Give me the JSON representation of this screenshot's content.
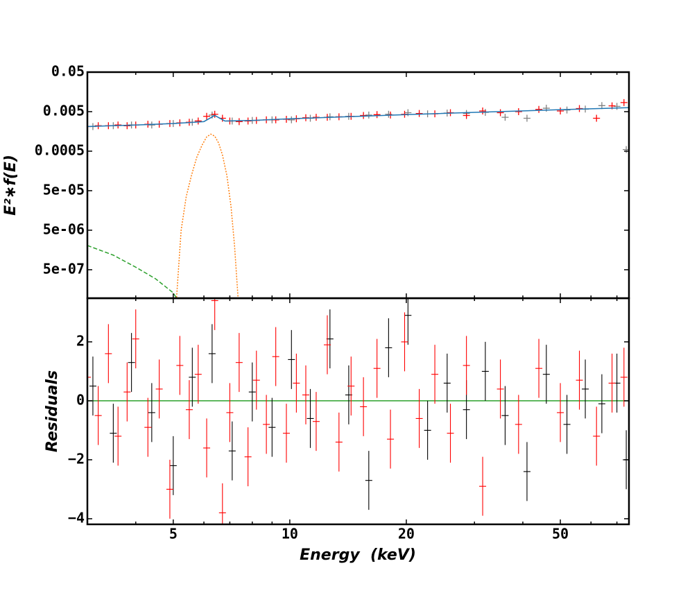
{
  "chart_data": [
    {
      "type": "line",
      "ylabel": "E²∗f(E)",
      "xscale": "log",
      "yscale": "log",
      "xlim": [
        3,
        75.2
      ],
      "ylim": [
        9.5e-08,
        0.05
      ],
      "yticks": [
        0.05,
        0.005,
        0.0005,
        {
          "value": 5e-05,
          "label": "5e-05"
        },
        {
          "value": 5e-06,
          "label": "5e-06"
        },
        {
          "value": 5e-07,
          "label": "5e-07"
        }
      ],
      "series": [
        {
          "style": "errorbar",
          "color": "#808080",
          "x": [
            3.1,
            3.5,
            3.9,
            4.4,
            5.0,
            5.6,
            6.3,
            7.1,
            8.0,
            9.0,
            10.1,
            11.3,
            12.7,
            14.2,
            16.0,
            18.0,
            20.2,
            22.7,
            25.5,
            28.6,
            32.0,
            36.0,
            41.0,
            46.0,
            52.0,
            58.0,
            64.0,
            70.0,
            74.0
          ],
          "values": [
            0.0021,
            0.0022,
            0.0023,
            0.0023,
            0.0025,
            0.0027,
            0.0041,
            0.0029,
            0.003,
            0.0031,
            0.0031,
            0.0034,
            0.0037,
            0.0038,
            0.0041,
            0.0043,
            0.0047,
            0.0044,
            0.0046,
            0.0045,
            0.0048,
            0.0036,
            0.0034,
            0.0061,
            0.0055,
            0.0058,
            0.0071,
            0.0068,
            0.00055
          ]
        },
        {
          "style": "errorbar",
          "color": "#ff0000",
          "x": [
            3.0,
            3.2,
            3.4,
            3.6,
            3.8,
            4.0,
            4.3,
            4.6,
            4.9,
            5.2,
            5.5,
            5.8,
            6.1,
            6.4,
            6.7,
            7.0,
            7.4,
            7.8,
            8.2,
            8.7,
            9.2,
            9.8,
            10.4,
            11.0,
            11.7,
            12.5,
            13.4,
            14.4,
            15.5,
            16.8,
            18.2,
            19.8,
            21.6,
            23.7,
            26.0,
            28.6,
            31.5,
            35.0,
            39.0,
            44.0,
            50.0,
            56.0,
            62.0,
            68.0,
            73.0
          ],
          "values": [
            0.0021,
            0.0022,
            0.0022,
            0.0023,
            0.0022,
            0.0023,
            0.0024,
            0.0024,
            0.0025,
            0.0026,
            0.0027,
            0.0029,
            0.0038,
            0.0043,
            0.0034,
            0.0029,
            0.0028,
            0.0029,
            0.003,
            0.0031,
            0.0031,
            0.0032,
            0.0033,
            0.0035,
            0.0036,
            0.0036,
            0.0037,
            0.0038,
            0.004,
            0.0042,
            0.0041,
            0.0043,
            0.0045,
            0.0044,
            0.0047,
            0.004,
            0.0052,
            0.0047,
            0.005,
            0.0057,
            0.0052,
            0.006,
            0.0034,
            0.007,
            0.0085
          ]
        },
        {
          "style": "solid",
          "color": "#1f77b4",
          "x": [
            3,
            4,
            5,
            6,
            6.4,
            6.8,
            8,
            10,
            15,
            20,
            30,
            50,
            75
          ],
          "values": [
            0.0021,
            0.0023,
            0.0025,
            0.0028,
            0.004,
            0.0029,
            0.003,
            0.0033,
            0.0038,
            0.0042,
            0.0048,
            0.0056,
            0.0063
          ]
        },
        {
          "style": "dotted",
          "color": "#ff7f0e",
          "x": [
            5.1,
            5.24,
            5.4,
            5.57,
            5.75,
            5.93,
            6.1,
            6.25,
            6.4,
            6.55,
            6.7,
            6.88,
            7.05,
            7.2,
            7.35
          ],
          "values": [
            1e-07,
            5e-06,
            3.5e-05,
            0.00012,
            0.00035,
            0.0007,
            0.00115,
            0.00135,
            0.0012,
            0.0008,
            0.0004,
            0.00012,
            2e-05,
            2e-06,
            1e-07
          ]
        },
        {
          "style": "dashed",
          "color": "#2ca02c",
          "x": [
            3,
            3.5,
            4,
            4.5,
            5,
            5.1
          ],
          "values": [
            2.05e-06,
            1.17e-06,
            5.8e-07,
            2.95e-07,
            1.3e-07,
            9.5e-08
          ]
        }
      ]
    },
    {
      "type": "scatter",
      "xlabel": "Energy  (keV)",
      "ylabel": "Residuals",
      "xscale": "log",
      "xlim": [
        3,
        75.2
      ],
      "ylim": [
        -4.19,
        3.48
      ],
      "xticks": [
        5,
        10,
        20,
        50
      ],
      "xminorticks": [
        3,
        4,
        6,
        7,
        8,
        9,
        30,
        40,
        60,
        70
      ],
      "yticks": [
        {
          "value": -4,
          "label": "−4"
        },
        {
          "value": -2,
          "label": "−2"
        },
        0,
        2
      ],
      "reference_line": {
        "y": 0,
        "color": "#2ca02c"
      },
      "series": [
        {
          "color": "#000000",
          "error": 1,
          "x": [
            3.1,
            3.5,
            3.9,
            4.4,
            5.0,
            5.6,
            6.3,
            7.1,
            8.0,
            9.0,
            10.1,
            11.3,
            12.7,
            14.2,
            16.0,
            18.0,
            20.2,
            22.7,
            25.5,
            28.6,
            32.0,
            36.0,
            41.0,
            46.0,
            52.0,
            58.0,
            64.0,
            70.0,
            74.0
          ],
          "values": [
            0.5,
            -1.1,
            1.3,
            -0.4,
            -2.2,
            0.8,
            1.6,
            -1.7,
            0.3,
            -0.9,
            1.4,
            -0.6,
            2.1,
            0.2,
            -2.7,
            1.8,
            2.9,
            -1.0,
            0.6,
            -0.3,
            1.0,
            -0.5,
            -2.4,
            0.9,
            -0.8,
            0.4,
            -0.1,
            0.6,
            -2.0
          ]
        },
        {
          "color": "#ff0000",
          "error": 1,
          "x": [
            3.0,
            3.2,
            3.4,
            3.6,
            3.8,
            4.0,
            4.3,
            4.6,
            4.9,
            5.2,
            5.5,
            5.8,
            6.1,
            6.4,
            6.7,
            7.0,
            7.4,
            7.8,
            8.2,
            8.7,
            9.2,
            9.8,
            10.4,
            11.0,
            11.7,
            12.5,
            13.4,
            14.4,
            15.5,
            16.8,
            18.2,
            19.8,
            21.6,
            23.7,
            26.0,
            28.6,
            31.5,
            35.0,
            39.0,
            44.0,
            50.0,
            56.0,
            62.0,
            68.0,
            73.0
          ],
          "values": [
            0.8,
            -0.5,
            1.6,
            -1.2,
            0.3,
            2.1,
            -0.9,
            0.4,
            -3.0,
            1.2,
            -0.3,
            0.9,
            -1.6,
            3.4,
            -3.8,
            -0.4,
            1.3,
            -1.9,
            0.7,
            -0.8,
            1.5,
            -1.1,
            0.6,
            0.2,
            -0.7,
            1.9,
            -1.4,
            0.5,
            -0.2,
            1.1,
            -1.3,
            2.0,
            -0.6,
            0.9,
            -1.1,
            1.2,
            -2.9,
            0.4,
            -0.8,
            1.1,
            -0.4,
            0.7,
            -1.2,
            0.6,
            0.8
          ]
        }
      ]
    }
  ]
}
